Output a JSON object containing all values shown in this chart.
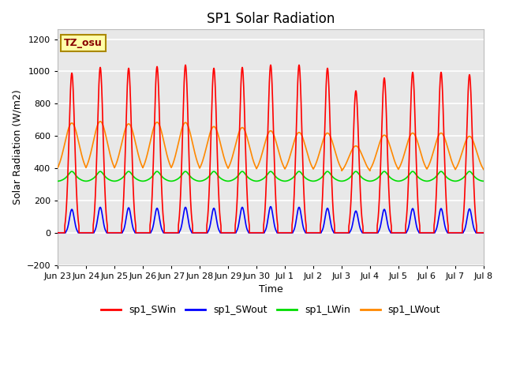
{
  "title": "SP1 Solar Radiation",
  "ylabel": "Solar Radiation (W/m2)",
  "xlabel": "Time",
  "ylim": [
    -200,
    1260
  ],
  "yticks": [
    -200,
    0,
    200,
    400,
    600,
    800,
    1000,
    1200
  ],
  "background_color": "#ffffff",
  "plot_bg_color": "#e8e8e8",
  "grid_color": "#ffffff",
  "tz_label": "TZ_osu",
  "colors": {
    "sp1_SWin": "#ff0000",
    "sp1_SWout": "#0000ff",
    "sp1_LWin": "#00dd00",
    "sp1_LWout": "#ff8800"
  },
  "n_days": 15,
  "tick_labels": [
    "Jun 23",
    "Jun 24",
    "Jun 25",
    "Jun 26",
    "Jun 27",
    "Jun 28",
    "Jun 29",
    "Jun 30",
    "Jul 1",
    "Jul 2",
    "Jul 3",
    "Jul 4",
    "Jul 5",
    "Jul 6",
    "Jul 7",
    "Jul 8"
  ],
  "SWin_peaks": [
    990,
    1025,
    1020,
    1030,
    1040,
    1020,
    1025,
    1040,
    1040,
    1020,
    880,
    960,
    995,
    995,
    980
  ],
  "SWout_peaks": [
    145,
    158,
    155,
    152,
    158,
    152,
    158,
    162,
    158,
    152,
    135,
    145,
    150,
    150,
    148
  ],
  "LWin_base": 350,
  "LWin_night": 320,
  "LWout_base": 390,
  "LWout_peaks": [
    680,
    690,
    675,
    685,
    683,
    658,
    652,
    632,
    622,
    618,
    538,
    605,
    618,
    618,
    598
  ]
}
